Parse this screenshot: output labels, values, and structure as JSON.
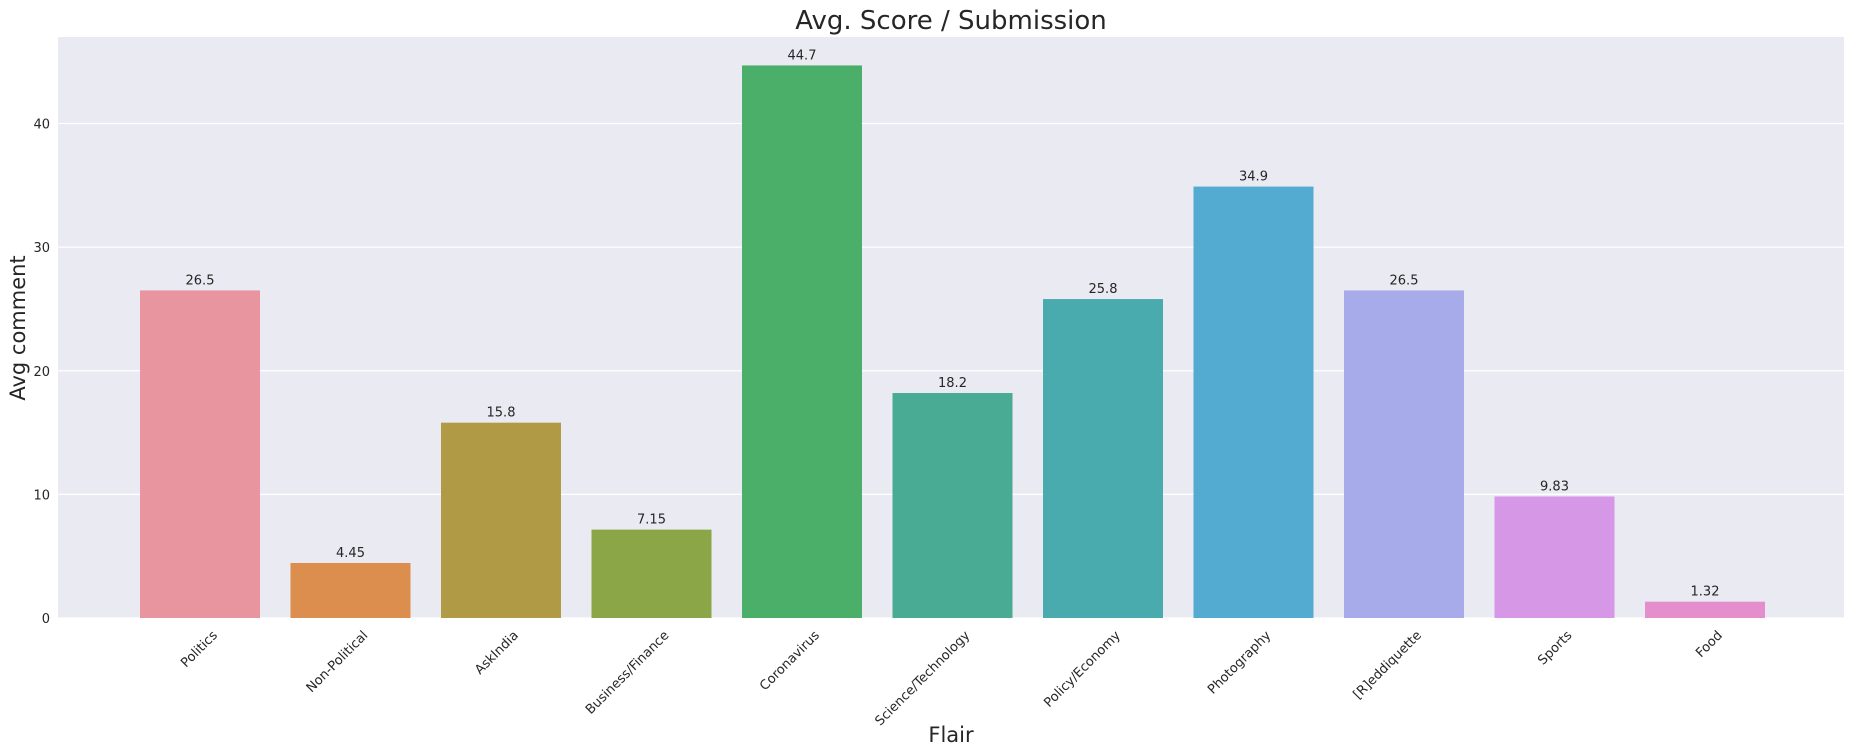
{
  "chart_data": {
    "type": "bar",
    "title": "Avg. Score / Submission",
    "xlabel": "Flair",
    "ylabel": "Avg comment",
    "categories": [
      "Politics",
      "Non-Political",
      "AskIndia",
      "Business/Finance",
      "Coronavirus",
      "Science/Technology",
      "Policy/Economy",
      "Photography",
      "[R]eddiquette",
      "Sports",
      "Food"
    ],
    "values": [
      26.5,
      4.45,
      15.8,
      7.15,
      44.7,
      18.2,
      25.8,
      34.9,
      26.5,
      9.83,
      1.32
    ],
    "value_labels": [
      "26.5",
      "4.45",
      "15.8",
      "7.15",
      "44.7",
      "18.2",
      "25.8",
      "34.9",
      "26.5",
      "9.83",
      "1.32"
    ],
    "colors": [
      "#e8959f",
      "#dc8e4f",
      "#b09a45",
      "#8ba646",
      "#4baf6a",
      "#4aab94",
      "#4aabaf",
      "#54abd2",
      "#a8abe9",
      "#d697e6",
      "#e48ecd"
    ],
    "ylim": [
      0,
      47
    ],
    "yticks": [
      0,
      10,
      20,
      30,
      40
    ],
    "grid": true,
    "background": "#eaeaf2"
  }
}
